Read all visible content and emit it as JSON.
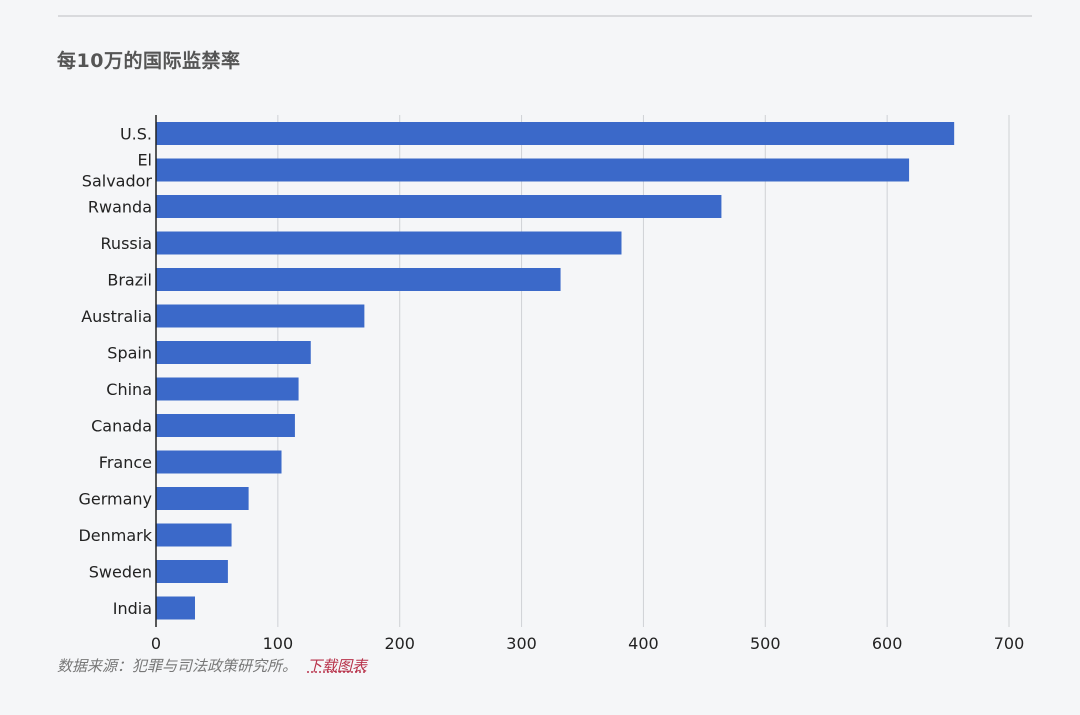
{
  "title": "每10万的国际监禁率",
  "footer": {
    "source_text": "数据来源：犯罪与司法政策研究所。",
    "download_label": "下载图表"
  },
  "colors": {
    "bar": "#3b69c9",
    "grid": "#cfd1d5",
    "axis": "#222222",
    "text": "#222222"
  },
  "chart_data": {
    "type": "bar",
    "orientation": "horizontal",
    "title": "每10万的国际监禁率",
    "xlabel": "",
    "ylabel": "",
    "categories": [
      "U.S.",
      "El Salvador",
      "Rwanda",
      "Russia",
      "Brazil",
      "Australia",
      "Spain",
      "China",
      "Canada",
      "France",
      "Germany",
      "Denmark",
      "Sweden",
      "India"
    ],
    "category_lines": [
      [
        "U.S."
      ],
      [
        "El",
        "Salvador"
      ],
      [
        "Rwanda"
      ],
      [
        "Russia"
      ],
      [
        "Brazil"
      ],
      [
        "Australia"
      ],
      [
        "Spain"
      ],
      [
        "China"
      ],
      [
        "Canada"
      ],
      [
        "France"
      ],
      [
        "Germany"
      ],
      [
        "Denmark"
      ],
      [
        "Sweden"
      ],
      [
        "India"
      ]
    ],
    "values": [
      655,
      618,
      464,
      382,
      332,
      171,
      127,
      117,
      114,
      103,
      76,
      62,
      59,
      32
    ],
    "xlim": [
      0,
      700
    ],
    "xticks": [
      "0",
      "100",
      "200",
      "300",
      "400",
      "500",
      "600",
      "700"
    ],
    "grid": true,
    "legend": "none"
  }
}
